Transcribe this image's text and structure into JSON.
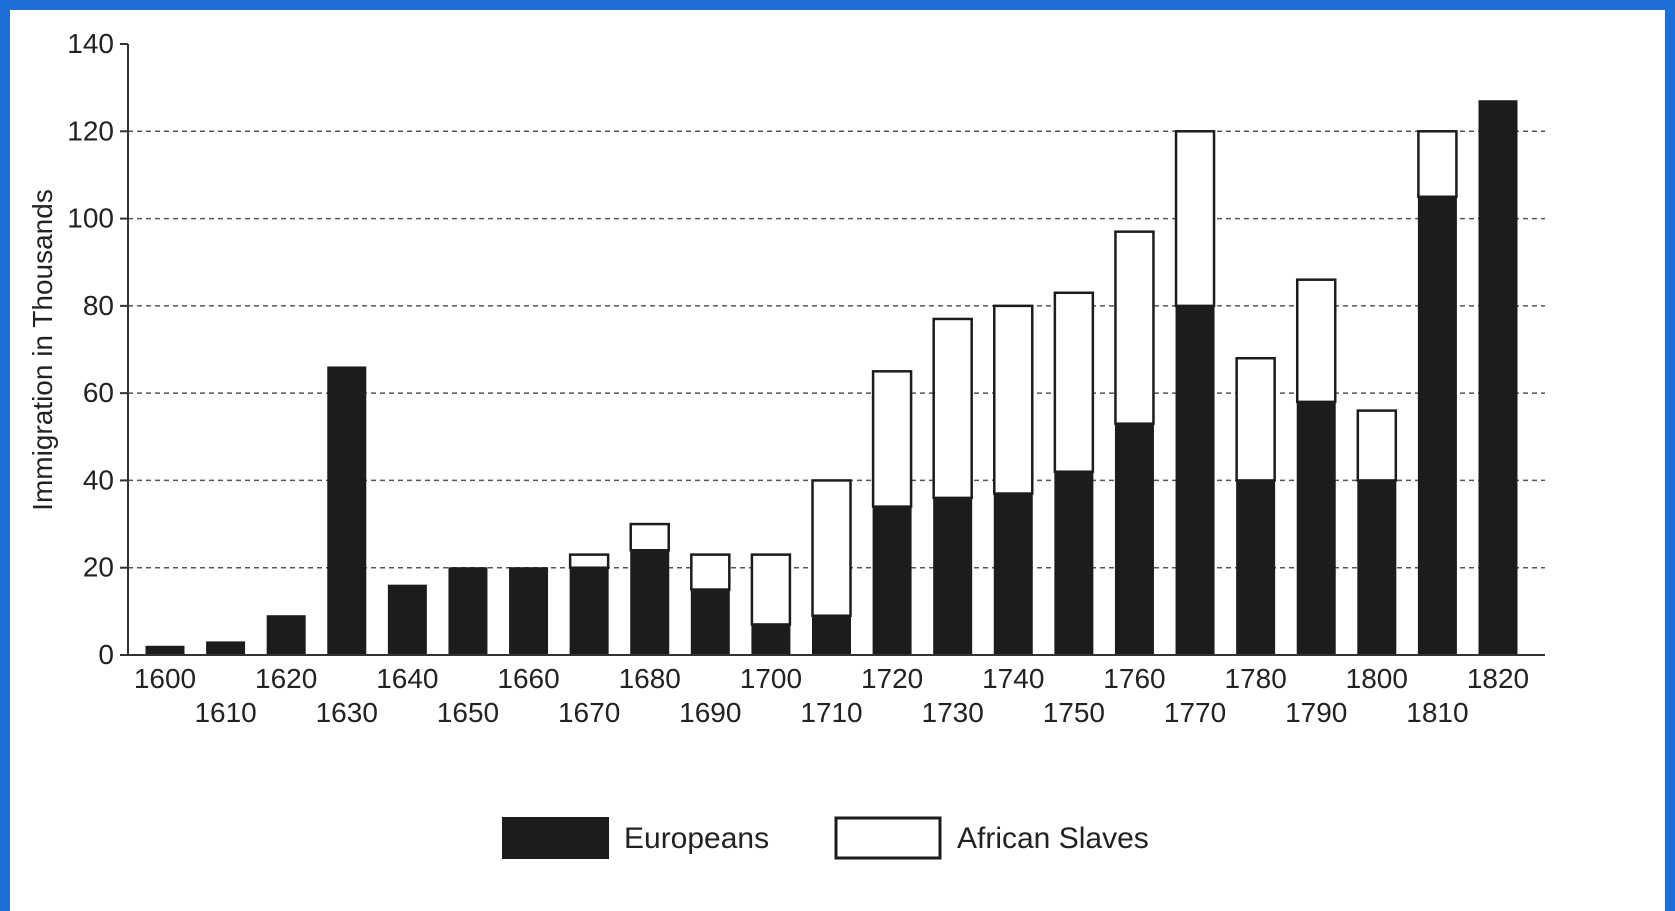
{
  "chart_data": {
    "type": "bar",
    "stacked": true,
    "ylabel": "Immigration in Thousands",
    "xlabel": "",
    "title": "",
    "ylim": [
      0,
      140
    ],
    "yticks": [
      0,
      20,
      40,
      60,
      80,
      100,
      120,
      140
    ],
    "grid": "horizontal dashed at 20, 40, 60, 80, 100, 120",
    "legend_position": "bottom",
    "categories": [
      "1600",
      "1610",
      "1620",
      "1630",
      "1640",
      "1650",
      "1660",
      "1670",
      "1680",
      "1690",
      "1700",
      "1710",
      "1720",
      "1730",
      "1740",
      "1750",
      "1760",
      "1770",
      "1780",
      "1790",
      "1800",
      "1810",
      "1820"
    ],
    "series": [
      {
        "name": "Europeans",
        "color": "#1c1c1c",
        "values": [
          2,
          3,
          9,
          66,
          16,
          20,
          20,
          20,
          24,
          15,
          7,
          9,
          34,
          36,
          37,
          42,
          53,
          80,
          40,
          58,
          40,
          105,
          127
        ]
      },
      {
        "name": "African Slaves",
        "color": "#ffffff",
        "values": [
          0,
          0,
          0,
          0,
          0,
          0,
          0,
          3,
          6,
          8,
          16,
          31,
          31,
          41,
          43,
          41,
          44,
          40,
          28,
          28,
          16,
          15,
          0
        ]
      }
    ]
  }
}
